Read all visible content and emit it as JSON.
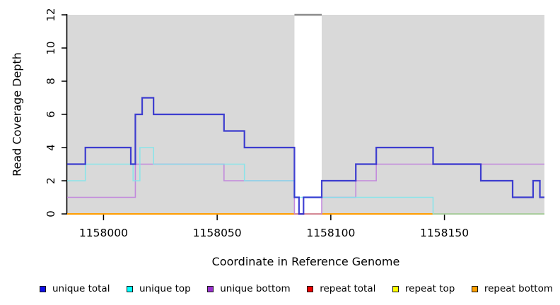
{
  "figure": {
    "x_axis_title": "Coordinate in Reference Genome",
    "y_axis_title": "Read Coverage Depth"
  },
  "chart_data": {
    "type": "line",
    "style": "step",
    "title": "",
    "xlabel": "Coordinate in Reference Genome",
    "ylabel": "Read Coverage Depth",
    "xlim": [
      1157984,
      1158194
    ],
    "ylim": [
      0,
      12
    ],
    "x_ticks": [
      1158000,
      1158050,
      1158100,
      1158150
    ],
    "x_tick_labels": [
      "1158000",
      "1158050",
      "1158100",
      "1158150"
    ],
    "y_ticks": [
      0,
      2,
      4,
      6,
      8,
      10,
      12
    ],
    "y_tick_labels": [
      "0",
      "2",
      "4",
      "6",
      "8",
      "10",
      "12"
    ],
    "grid": false,
    "panel_background": "#d9d9d9",
    "outer_background": "#ffffff",
    "axis_color": "#000000",
    "masked_region": {
      "start": 1158084,
      "end": 1158096,
      "fill": "#ffffff",
      "cap_value": 12,
      "cap_color": "#8c8c8c"
    },
    "legend_position": "bottom",
    "draw_order": [
      "repeat total",
      "repeat top",
      "repeat bottom",
      "unique bottom",
      "unique top",
      "unique total"
    ],
    "series": [
      {
        "name": "unique total",
        "color": "#2121cd",
        "legend_color": "#0f0fe8",
        "width": 2.2,
        "opacity": 0.85,
        "steps": [
          [
            1157984,
            3
          ],
          [
            1157992,
            4
          ],
          [
            1158012,
            3
          ],
          [
            1158014,
            6
          ],
          [
            1158017,
            7
          ],
          [
            1158022,
            6
          ],
          [
            1158053,
            5
          ],
          [
            1158062,
            4
          ],
          [
            1158084,
            1
          ],
          [
            1158086,
            0
          ],
          [
            1158088,
            1
          ],
          [
            1158096,
            2
          ],
          [
            1158111,
            3
          ],
          [
            1158120,
            4
          ],
          [
            1158145,
            3
          ],
          [
            1158166,
            2
          ],
          [
            1158180,
            1
          ],
          [
            1158189,
            2
          ],
          [
            1158192,
            1
          ],
          [
            1158194,
            1
          ]
        ]
      },
      {
        "name": "unique top",
        "color": "#82e4ea",
        "legend_color": "#00ffff",
        "width": 1.6,
        "opacity": 0.9,
        "steps": [
          [
            1157984,
            2
          ],
          [
            1157992,
            3
          ],
          [
            1158013,
            2
          ],
          [
            1158016,
            4
          ],
          [
            1158022,
            3
          ],
          [
            1158062,
            2
          ],
          [
            1158084,
            1
          ],
          [
            1158145,
            0
          ],
          [
            1158194,
            0
          ]
        ]
      },
      {
        "name": "unique bottom",
        "color": "#bf7fdb",
        "legend_color": "#9a30cf",
        "width": 1.6,
        "opacity": 0.9,
        "steps": [
          [
            1157984,
            1
          ],
          [
            1158014,
            3
          ],
          [
            1158053,
            2
          ],
          [
            1158084,
            0
          ],
          [
            1158096,
            1
          ],
          [
            1158111,
            2
          ],
          [
            1158120,
            3
          ],
          [
            1158194,
            3
          ]
        ]
      },
      {
        "name": "repeat total",
        "color": "#e00000",
        "legend_color": "#ee0000",
        "width": 1.5,
        "opacity": 1,
        "steps": [
          [
            1157984,
            0
          ],
          [
            1158194,
            0
          ]
        ]
      },
      {
        "name": "repeat top",
        "color": "#ffff00",
        "legend_color": "#ffff00",
        "width": 1.5,
        "opacity": 1,
        "steps": [
          [
            1157984,
            0
          ],
          [
            1158194,
            0
          ]
        ]
      },
      {
        "name": "repeat bottom",
        "color": "#ff9d00",
        "legend_color": "#ffa000",
        "width": 2,
        "opacity": 1,
        "steps": [
          [
            1157984,
            0
          ],
          [
            1158194,
            0
          ]
        ]
      }
    ]
  }
}
